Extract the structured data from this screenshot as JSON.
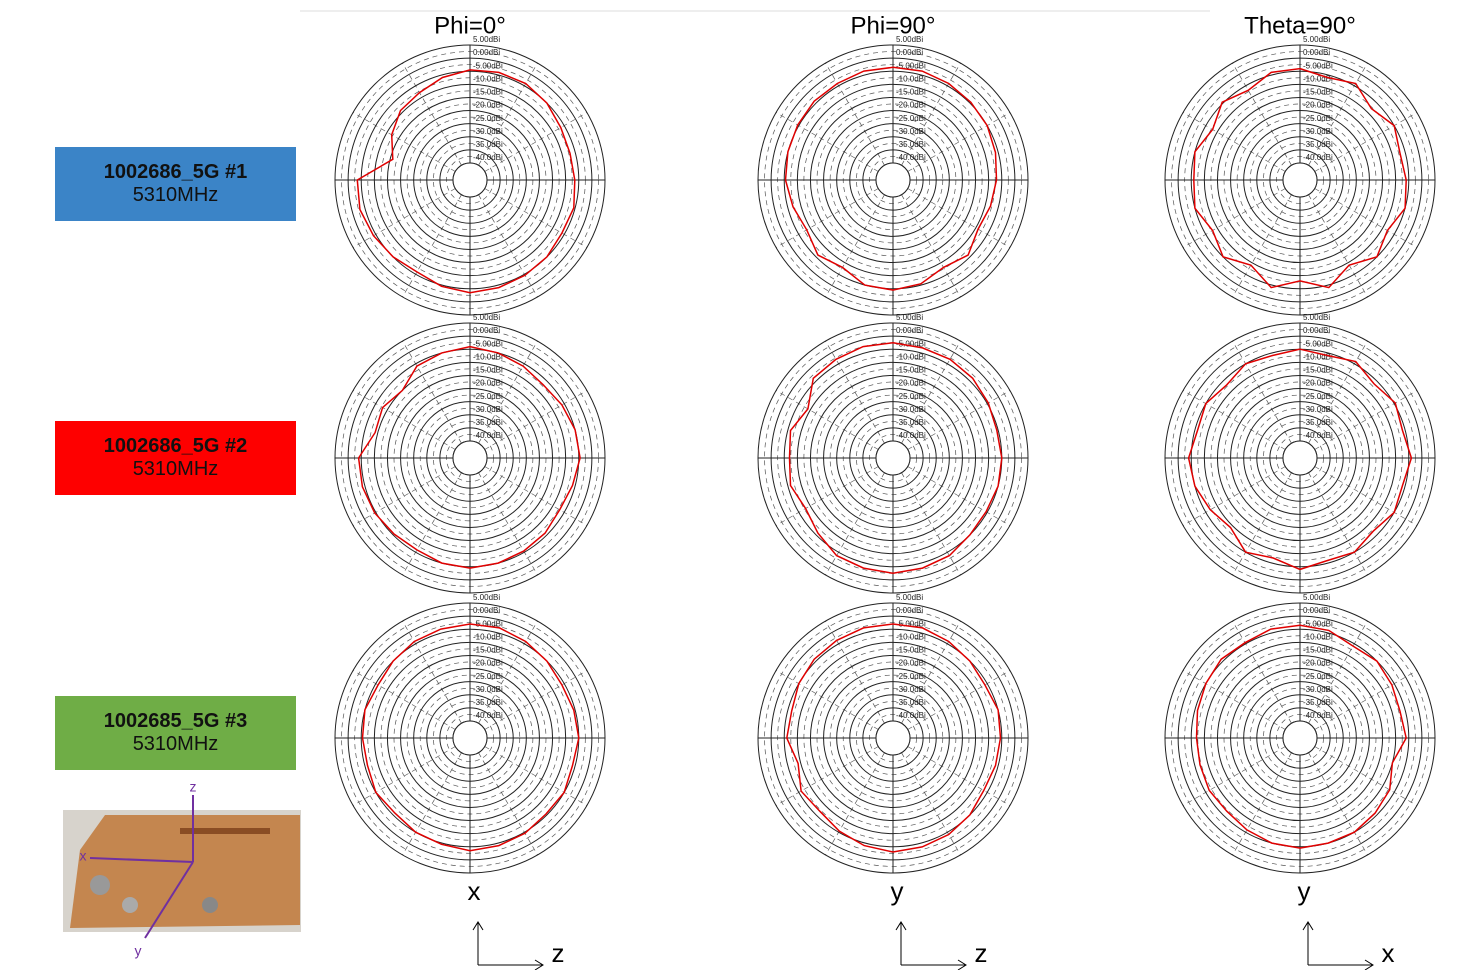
{
  "columns": [
    {
      "title": "Phi=0°",
      "axis_v": "x",
      "axis_h": "z"
    },
    {
      "title": "Phi=90°",
      "axis_v": "y",
      "axis_h": "z"
    },
    {
      "title": "Theta=90°",
      "axis_v": "y",
      "axis_h": "x"
    }
  ],
  "rows": [
    {
      "name": "1002686_5G  #1",
      "freq": "5310MHz",
      "color": "#3b84c7"
    },
    {
      "name": "1002686_5G  #2",
      "freq": "5310MHz",
      "color": "#fe0000"
    },
    {
      "name": "1002685_5G  #3",
      "freq": "5310MHz",
      "color": "#6fad46"
    }
  ],
  "photo": {
    "axis_labels": [
      "z",
      "x",
      "y"
    ]
  },
  "chart_data": [
    {
      "type": "polar",
      "color": "#e00000",
      "rlim": [
        -40,
        5
      ],
      "rticks": [
        {
          "value": 5,
          "label": "5.00dBi"
        },
        {
          "value": 0,
          "label": "0.00dBi"
        },
        {
          "value": -5,
          "label": "-5.00dBi"
        },
        {
          "value": -10,
          "label": "-10.0dBi"
        },
        {
          "value": -15,
          "label": "-15.0dBi"
        },
        {
          "value": -20,
          "label": "-20.0dBi"
        },
        {
          "value": -25,
          "label": "-25.0dBi"
        },
        {
          "value": -30,
          "label": "-30.0dBi"
        },
        {
          "value": -35,
          "label": "-35.0dBi"
        },
        {
          "value": -40,
          "label": "-40.0dBi"
        }
      ],
      "theta": [
        0,
        15,
        30,
        45,
        60,
        75,
        90,
        105,
        120,
        135,
        150,
        165,
        180,
        195,
        210,
        225,
        240,
        255,
        270,
        285,
        300,
        315,
        330,
        345
      ],
      "values": [
        -4.5,
        -4,
        -4,
        -5,
        -6.5,
        -7,
        -6.5,
        -5.5,
        -6,
        -5,
        -4.5,
        -4,
        -3.5,
        -4.5,
        -6,
        -5,
        -4,
        -3,
        -3.5,
        -16,
        -12,
        -9,
        -8,
        -6
      ]
    },
    {
      "type": "polar",
      "color": "#e00000",
      "rlim": [
        -40,
        5
      ],
      "rticks": [
        {
          "value": 5,
          "label": "5.00dBi"
        },
        {
          "value": 0,
          "label": "0.00dBi"
        },
        {
          "value": -5,
          "label": "-5.00dBi"
        },
        {
          "value": -10,
          "label": "-10.0dBi"
        },
        {
          "value": -15,
          "label": "-15.0dBi"
        },
        {
          "value": -20,
          "label": "-20.0dBi"
        },
        {
          "value": -25,
          "label": "-25.0dBi"
        },
        {
          "value": -30,
          "label": "-30.0dBi"
        },
        {
          "value": -35,
          "label": "-35.0dBi"
        },
        {
          "value": -40,
          "label": "-40.0dBi"
        }
      ],
      "theta": [
        0,
        15,
        30,
        45,
        60,
        75,
        90,
        105,
        120,
        135,
        150,
        165,
        180,
        195,
        210,
        225,
        240,
        255,
        270,
        285,
        300,
        315,
        330,
        345
      ],
      "values": [
        -3.5,
        -3.5,
        -4,
        -4.5,
        -5,
        -6,
        -7,
        -8,
        -9,
        -6,
        -8,
        -5.5,
        -4.5,
        -5,
        -8,
        -6,
        -8.5,
        -7,
        -5.5,
        -5,
        -4.5,
        -4,
        -4,
        -3.5
      ]
    },
    {
      "type": "polar",
      "color": "#e00000",
      "rlim": [
        -40,
        5
      ],
      "rticks": [
        {
          "value": 5,
          "label": "5.00dBi"
        },
        {
          "value": 0,
          "label": "0.00dBi"
        },
        {
          "value": -5,
          "label": "-5.00dBi"
        },
        {
          "value": -10,
          "label": "-10.0dBi"
        },
        {
          "value": -15,
          "label": "-15.0dBi"
        },
        {
          "value": -20,
          "label": "-20.0dBi"
        },
        {
          "value": -25,
          "label": "-25.0dBi"
        },
        {
          "value": -30,
          "label": "-30.0dBi"
        },
        {
          "value": -35,
          "label": "-35.0dBi"
        },
        {
          "value": -40,
          "label": "-40.0dBi"
        }
      ],
      "theta": [
        0,
        15,
        30,
        45,
        60,
        75,
        90,
        105,
        120,
        135,
        150,
        165,
        180,
        195,
        210,
        225,
        240,
        255,
        270,
        285,
        300,
        315,
        330,
        345
      ],
      "values": [
        -4,
        -6,
        -4,
        -8,
        -5,
        -7,
        -6,
        -5,
        -8,
        -5,
        -9,
        -4,
        -8,
        -4,
        -9,
        -5,
        -8,
        -5,
        -6,
        -5,
        -8,
        -4.5,
        -7,
        -4
      ]
    },
    {
      "type": "polar",
      "color": "#e00000",
      "rlim": [
        -40,
        5
      ],
      "rticks": [
        {
          "value": 5,
          "label": "5.00dBi"
        },
        {
          "value": 0,
          "label": "0.00dBi"
        },
        {
          "value": -5,
          "label": "-5.00dBi"
        },
        {
          "value": -10,
          "label": "-10.0dBi"
        },
        {
          "value": -15,
          "label": "-15.0dBi"
        },
        {
          "value": -20,
          "label": "-20.0dBi"
        },
        {
          "value": -25,
          "label": "-25.0dBi"
        },
        {
          "value": -30,
          "label": "-30.0dBi"
        },
        {
          "value": -35,
          "label": "-35.0dBi"
        },
        {
          "value": -40,
          "label": "-40.0dBi"
        }
      ],
      "theta": [
        0,
        15,
        30,
        45,
        60,
        75,
        90,
        105,
        120,
        135,
        150,
        165,
        180,
        195,
        210,
        225,
        240,
        255,
        270,
        285,
        300,
        315,
        330,
        345
      ],
      "values": [
        -4,
        -5,
        -6,
        -7,
        -6,
        -5,
        -4.5,
        -6,
        -7,
        -6,
        -5.5,
        -5,
        -4.5,
        -5,
        -6,
        -5.5,
        -4.5,
        -4,
        -4,
        -9,
        -8,
        -10,
        -6,
        -5
      ]
    },
    {
      "type": "polar",
      "color": "#e00000",
      "rlim": [
        -40,
        5
      ],
      "rticks": [
        {
          "value": 5,
          "label": "5.00dBi"
        },
        {
          "value": 0,
          "label": "0.00dBi"
        },
        {
          "value": -5,
          "label": "-5.00dBi"
        },
        {
          "value": -10,
          "label": "-10.0dBi"
        },
        {
          "value": -15,
          "label": "-15.0dBi"
        },
        {
          "value": -20,
          "label": "-20.0dBi"
        },
        {
          "value": -25,
          "label": "-25.0dBi"
        },
        {
          "value": -30,
          "label": "-30.0dBi"
        },
        {
          "value": -35,
          "label": "-35.0dBi"
        },
        {
          "value": -40,
          "label": "-40.0dBi"
        }
      ],
      "theta": [
        0,
        15,
        30,
        45,
        60,
        75,
        90,
        105,
        120,
        135,
        150,
        165,
        180,
        195,
        210,
        225,
        240,
        255,
        270,
        285,
        300,
        315,
        330,
        345
      ],
      "values": [
        -2.5,
        -3,
        -3,
        -3.5,
        -4.5,
        -5.5,
        -5,
        -5,
        -5.5,
        -5,
        -3.5,
        -3,
        -2.5,
        -3,
        -3.5,
        -6,
        -8,
        -6,
        -7,
        -6,
        -9,
        -3.5,
        -3,
        -2.5
      ]
    },
    {
      "type": "polar",
      "color": "#e00000",
      "rlim": [
        -40,
        5
      ],
      "rticks": [
        {
          "value": 5,
          "label": "5.00dBi"
        },
        {
          "value": 0,
          "label": "0.00dBi"
        },
        {
          "value": -5,
          "label": "-5.00dBi"
        },
        {
          "value": -10,
          "label": "-10.0dBi"
        },
        {
          "value": -15,
          "label": "-15.0dBi"
        },
        {
          "value": -20,
          "label": "-20.0dBi"
        },
        {
          "value": -25,
          "label": "-25.0dBi"
        },
        {
          "value": -30,
          "label": "-30.0dBi"
        },
        {
          "value": -35,
          "label": "-35.0dBi"
        },
        {
          "value": -40,
          "label": "-40.0dBi"
        }
      ],
      "theta": [
        0,
        15,
        30,
        45,
        60,
        75,
        90,
        105,
        120,
        135,
        150,
        165,
        180,
        195,
        210,
        225,
        240,
        255,
        270,
        285,
        300,
        315,
        330,
        345
      ],
      "values": [
        -5,
        -6,
        -4,
        -6.5,
        -4.5,
        -6,
        -4,
        -6,
        -5,
        -7,
        -5,
        -6,
        -4,
        -7,
        -5,
        -9,
        -7,
        -5,
        -4,
        -6,
        -5,
        -7,
        -5,
        -6
      ]
    },
    {
      "type": "polar",
      "color": "#e00000",
      "rlim": [
        -40,
        5
      ],
      "rticks": [
        {
          "value": 5,
          "label": "5.00dBi"
        },
        {
          "value": 0,
          "label": "0.00dBi"
        },
        {
          "value": -5,
          "label": "-5.00dBi"
        },
        {
          "value": -10,
          "label": "-10.0dBi"
        },
        {
          "value": -15,
          "label": "-15.0dBi"
        },
        {
          "value": -20,
          "label": "-20.0dBi"
        },
        {
          "value": -25,
          "label": "-25.0dBi"
        },
        {
          "value": -30,
          "label": "-30.0dBi"
        },
        {
          "value": -35,
          "label": "-35.0dBi"
        },
        {
          "value": -40,
          "label": "-40.0dBi"
        }
      ],
      "theta": [
        0,
        15,
        30,
        45,
        60,
        75,
        90,
        105,
        120,
        135,
        150,
        165,
        180,
        195,
        210,
        225,
        240,
        255,
        270,
        285,
        300,
        315,
        330,
        345
      ],
      "values": [
        -3,
        -3,
        -4,
        -5,
        -6,
        -5.5,
        -5,
        -6,
        -5,
        -5.5,
        -4.5,
        -4,
        -3.5,
        -4.5,
        -5,
        -6,
        -5,
        -6,
        -5.5,
        -5,
        -6,
        -5,
        -4,
        -3.5
      ]
    },
    {
      "type": "polar",
      "color": "#e00000",
      "rlim": [
        -40,
        5
      ],
      "rticks": [
        {
          "value": 5,
          "label": "5.00dBi"
        },
        {
          "value": 0,
          "label": "0.00dBi"
        },
        {
          "value": -5,
          "label": "-5.00dBi"
        },
        {
          "value": -10,
          "label": "-10.0dBi"
        },
        {
          "value": -15,
          "label": "-15.0dBi"
        },
        {
          "value": -20,
          "label": "-20.0dBi"
        },
        {
          "value": -25,
          "label": "-25.0dBi"
        },
        {
          "value": -30,
          "label": "-30.0dBi"
        },
        {
          "value": -35,
          "label": "-35.0dBi"
        },
        {
          "value": -40,
          "label": "-40.0dBi"
        }
      ],
      "theta": [
        0,
        15,
        30,
        45,
        60,
        75,
        90,
        105,
        120,
        135,
        150,
        165,
        180,
        195,
        210,
        225,
        240,
        255,
        270,
        285,
        300,
        315,
        330,
        345
      ],
      "values": [
        -3,
        -3,
        -4,
        -5,
        -6,
        -5,
        -5.5,
        -6,
        -6.5,
        -5,
        -4,
        -3.5,
        -3,
        -4,
        -5.5,
        -7,
        -6,
        -9,
        -6,
        -6.5,
        -5,
        -4,
        -3.5,
        -3
      ]
    },
    {
      "type": "polar",
      "color": "#e00000",
      "rlim": [
        -40,
        5
      ],
      "rticks": [
        {
          "value": 5,
          "label": "5.00dBi"
        },
        {
          "value": 0,
          "label": "0.00dBi"
        },
        {
          "value": -5,
          "label": "-5.00dBi"
        },
        {
          "value": -10,
          "label": "-10.0dBi"
        },
        {
          "value": -15,
          "label": "-15.0dBi"
        },
        {
          "value": -20,
          "label": "-20.0dBi"
        },
        {
          "value": -25,
          "label": "-25.0dBi"
        },
        {
          "value": -30,
          "label": "-30.0dBi"
        },
        {
          "value": -35,
          "label": "-35.0dBi"
        },
        {
          "value": -40,
          "label": "-40.0dBi"
        }
      ],
      "theta": [
        0,
        15,
        30,
        45,
        60,
        75,
        90,
        105,
        120,
        135,
        150,
        165,
        180,
        195,
        210,
        225,
        240,
        255,
        270,
        285,
        300,
        315,
        330,
        345
      ],
      "values": [
        -3.5,
        -4,
        -6,
        -5,
        -6,
        -7,
        -6,
        -10,
        -7,
        -6,
        -5,
        -5,
        -4.5,
        -5,
        -6,
        -7,
        -6.5,
        -7,
        -7,
        -6,
        -5,
        -4,
        -4.5,
        -3.5
      ]
    }
  ]
}
